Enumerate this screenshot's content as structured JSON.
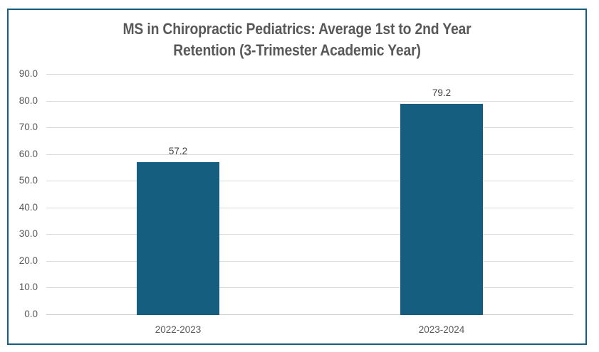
{
  "frame": {
    "border_color": "#155E80",
    "background": "#ffffff"
  },
  "title": {
    "line1": "MS in Chiropractic Pediatrics: Average 1st to 2nd Year",
    "line2": "Retention (3-Trimester Academic Year)",
    "color": "#595959"
  },
  "chart_data": {
    "type": "bar",
    "title": "MS in Chiropractic Pediatrics: Average 1st to 2nd Year Retention (3-Trimester Academic Year)",
    "categories": [
      "2022-2023",
      "2023-2024"
    ],
    "values": [
      57.2,
      79.2
    ],
    "data_labels": [
      "57.2",
      "79.2"
    ],
    "xlabel": "",
    "ylabel": "",
    "ylim": [
      0,
      90
    ],
    "ytick_step": 10,
    "ytick_labels": [
      "0.0",
      "10.0",
      "20.0",
      "30.0",
      "40.0",
      "50.0",
      "60.0",
      "70.0",
      "80.0",
      "90.0"
    ],
    "grid": true,
    "legend_position": "none",
    "bar_color": "#155E80",
    "gridline_color": "#D9D9D9",
    "baseline_color": "#CCCCCC",
    "tick_label_color": "#595959",
    "data_label_color": "#404040"
  }
}
